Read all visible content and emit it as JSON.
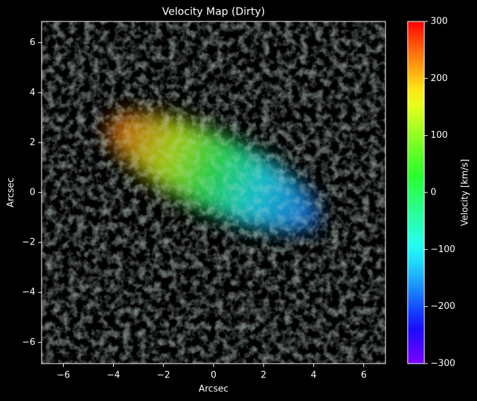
{
  "chart_data": {
    "type": "image",
    "title": "Velocity Map (Dirty)",
    "xlabel": "Arcsec",
    "ylabel": "Arcsec",
    "xlim": [
      -6.87,
      6.87
    ],
    "ylim": [
      -6.85,
      6.85
    ],
    "xticks": [
      {
        "value": -6,
        "label": "−6"
      },
      {
        "value": -4,
        "label": "−4"
      },
      {
        "value": -2,
        "label": "−2"
      },
      0,
      2,
      4,
      6
    ],
    "yticks": [
      {
        "value": -6,
        "label": "−6"
      },
      {
        "value": -4,
        "label": "−4"
      },
      {
        "value": -2,
        "label": "−2"
      },
      0,
      2,
      4,
      6
    ],
    "colorbar": {
      "label": "Velocity [km/s]",
      "colormap": "rainbow",
      "lim": [
        -300,
        300
      ],
      "ticks": [
        {
          "value": -300,
          "label": "−300"
        },
        {
          "value": -200,
          "label": "−200"
        },
        {
          "value": -100,
          "label": "−100"
        },
        0,
        100,
        200,
        300
      ]
    }
  }
}
